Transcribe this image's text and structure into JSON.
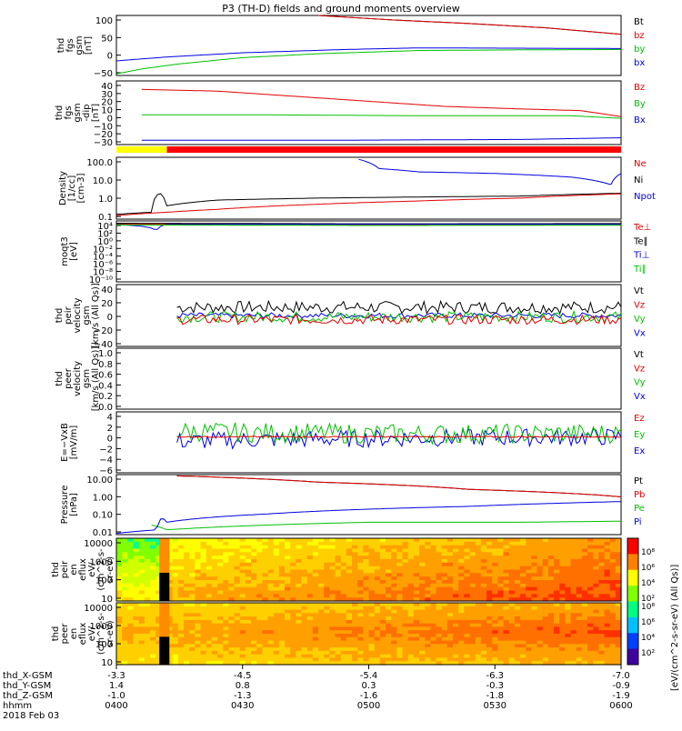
{
  "title": "P3 (TH-D) fields and ground moments overview",
  "colors": {
    "black": "#000000",
    "red": "#e00000",
    "green": "#00c000",
    "blue": "#0000e0",
    "yellow": "#ffff00",
    "bar_red": "#ff0000"
  },
  "chart_data": [
    {
      "type": "line",
      "ylabel": [
        "thd",
        "fgs",
        "gsm",
        "[nT]"
      ],
      "yticks": [
        "100",
        "50",
        "0",
        "−50"
      ],
      "ylim": [
        -75,
        110
      ],
      "legend": [
        {
          "label": "Bt",
          "color": "#000000"
        },
        {
          "label": "bz",
          "color": "#e00000"
        },
        {
          "label": "by",
          "color": "#00c000"
        },
        {
          "label": "bx",
          "color": "#0000e0"
        }
      ],
      "series": [
        {
          "name": "Bt",
          "color": "#000000",
          "x": [
            0.4,
            0.55,
            0.7,
            0.85,
            1.0
          ],
          "y": [
            110,
            96,
            85,
            72,
            52
          ]
        },
        {
          "name": "bz",
          "color": "#e00000",
          "x": [
            0.4,
            0.55,
            0.7,
            0.85,
            1.0
          ],
          "y": [
            110,
            96,
            85,
            72,
            52
          ]
        },
        {
          "name": "by",
          "color": "#00c000",
          "x": [
            0,
            0.05,
            0.12,
            0.25,
            0.4,
            0.6,
            0.8,
            1.0
          ],
          "y": [
            -70,
            -55,
            -40,
            -20,
            -8,
            2,
            4,
            5
          ]
        },
        {
          "name": "bx",
          "color": "#0000e0",
          "x": [
            0,
            0.1,
            0.25,
            0.45,
            0.6,
            0.8,
            1.0
          ],
          "y": [
            -30,
            -18,
            -5,
            5,
            10,
            9,
            8
          ]
        }
      ]
    },
    {
      "type": "line",
      "ylabel": [
        "thd",
        "fgs",
        "gsm",
        "-dip",
        "[nT]"
      ],
      "yticks": [
        "40",
        "30",
        "20",
        "10",
        "0",
        "−10",
        "−20",
        "−30"
      ],
      "ylim": [
        -35,
        40
      ],
      "legend": [
        {
          "label": "Bz",
          "color": "#e00000"
        },
        {
          "label": "By",
          "color": "#00c000"
        },
        {
          "label": "Bx",
          "color": "#0000e0"
        }
      ],
      "series": [
        {
          "name": "Bz",
          "color": "#e00000",
          "x": [
            0.05,
            0.2,
            0.35,
            0.5,
            0.65,
            0.8,
            0.92,
            1.0
          ],
          "y": [
            30,
            28,
            22,
            16,
            10,
            7,
            5,
            -2
          ]
        },
        {
          "name": "By",
          "color": "#00c000",
          "x": [
            0.05,
            0.3,
            0.6,
            0.9,
            1.0
          ],
          "y": [
            0,
            0,
            -1,
            -1,
            -4
          ]
        },
        {
          "name": "Bx",
          "color": "#0000e0",
          "x": [
            0.05,
            0.4,
            0.8,
            1.0
          ],
          "y": [
            -30,
            -30,
            -29,
            -27
          ]
        }
      ]
    },
    {
      "type": "bar",
      "label": "region bar",
      "segments": [
        {
          "x0": 0,
          "x1": 0.1,
          "color": "#ffff00"
        },
        {
          "x0": 0.1,
          "x1": 1.0,
          "color": "#ff0000"
        }
      ]
    },
    {
      "type": "line",
      "scale": "log",
      "ylabel": [
        "Density",
        "[1/cc]",
        "[cm-3]"
      ],
      "yticks": [
        "100.0",
        "10.0",
        "1.0",
        "0.1"
      ],
      "ylim": [
        0.03,
        200
      ],
      "legend": [
        {
          "label": "Ne",
          "color": "#e00000"
        },
        {
          "label": "Ni",
          "color": "#000000"
        },
        {
          "label": "Npot",
          "color": "#0000e0"
        }
      ],
      "series": [
        {
          "name": "Ni",
          "color": "#000000",
          "x": [
            0,
            0.07,
            0.085,
            0.1,
            0.2,
            0.4,
            0.6,
            0.8,
            1.0
          ],
          "y": [
            0.06,
            0.08,
            1.3,
            0.2,
            0.45,
            0.6,
            0.7,
            0.8,
            1.2
          ]
        },
        {
          "name": "Ne",
          "color": "#e00000",
          "x": [
            0,
            0.1,
            0.2,
            0.4,
            0.6,
            0.8,
            1.0
          ],
          "y": [
            0.05,
            0.08,
            0.12,
            0.25,
            0.4,
            0.6,
            1.1
          ]
        },
        {
          "name": "Npot",
          "color": "#0000e0",
          "x": [
            0.48,
            0.52,
            0.6,
            0.75,
            0.9,
            0.98,
            1.0
          ],
          "y": [
            150,
            40,
            25,
            20,
            12,
            4,
            20
          ]
        }
      ]
    },
    {
      "type": "line",
      "scale": "log",
      "ylabel": [
        "moqt3",
        "[eV]"
      ],
      "yticks": [
        "10⁴",
        "10²",
        "10⁰",
        "10⁻²",
        "10⁻⁴",
        "10⁻⁶",
        "10⁻⁸",
        "10⁻¹⁰"
      ],
      "ylim": [
        1e-10,
        10000.0
      ],
      "legend": [
        {
          "label": "Te⊥",
          "color": "#e00000"
        },
        {
          "label": "Te∥",
          "color": "#000000"
        },
        {
          "label": "Ti⊥",
          "color": "#0000e0"
        },
        {
          "label": "Ti∥",
          "color": "#00c000"
        }
      ],
      "series": [
        {
          "name": "Te⊥",
          "color": "#e00000",
          "x": [
            0,
            0.5,
            1.0
          ],
          "y": [
            2000,
            1500,
            1800
          ]
        },
        {
          "name": "Te∥",
          "color": "#000000",
          "x": [
            0,
            0.5,
            1.0
          ],
          "y": [
            3000,
            2200,
            2500
          ]
        },
        {
          "name": "Ti⊥",
          "color": "#0000e0",
          "x": [
            0,
            0.08,
            0.1,
            0.5,
            1.0
          ],
          "y": [
            1500,
            20,
            1500,
            1800,
            1700
          ]
        },
        {
          "name": "Ti∥",
          "color": "#00c000",
          "x": [
            0,
            0.5,
            1.0
          ],
          "y": [
            1200,
            900,
            1000
          ]
        }
      ]
    },
    {
      "type": "line",
      "ylabel": [
        "thd",
        "peir",
        "velocity",
        "gsm",
        "[km/s (All Qs)]"
      ],
      "yticks": [
        "40",
        "20",
        "0",
        "−20",
        "−40"
      ],
      "ylim": [
        -45,
        45
      ],
      "legend": [
        {
          "label": "Vt",
          "color": "#000000"
        },
        {
          "label": "Vz",
          "color": "#e00000"
        },
        {
          "label": "Vy",
          "color": "#00c000"
        },
        {
          "label": "Vx",
          "color": "#0000e0"
        }
      ],
      "series": [
        {
          "name": "Vt",
          "color": "#000000",
          "x": [
            0.12,
            1.0
          ],
          "y": [
            12,
            12
          ],
          "noise": 9
        },
        {
          "name": "Vx",
          "color": "#0000e0",
          "x": [
            0.12,
            1.0
          ],
          "y": [
            0,
            0
          ],
          "noise": 4
        },
        {
          "name": "Vy",
          "color": "#00c000",
          "x": [
            0.12,
            1.0
          ],
          "y": [
            -2,
            -2
          ],
          "noise": 8
        },
        {
          "name": "Vz",
          "color": "#e00000",
          "x": [
            0.12,
            1.0
          ],
          "y": [
            -6,
            -6
          ],
          "noise": 7
        }
      ]
    },
    {
      "type": "line",
      "ylabel": [
        "thd",
        "peer",
        "velocity",
        "gsm",
        "[km/s (All Qs)]"
      ],
      "yticks": [
        "1.0",
        "0.8",
        "0.6",
        "0.4",
        "0.2",
        "0.0"
      ],
      "ylim": [
        0,
        1
      ],
      "legend": [
        {
          "label": "Vt",
          "color": "#000000"
        },
        {
          "label": "Vz",
          "color": "#e00000"
        },
        {
          "label": "Vy",
          "color": "#00c000"
        },
        {
          "label": "Vx",
          "color": "#0000e0"
        }
      ],
      "series": []
    },
    {
      "type": "line",
      "ylabel": [
        "E=−VxB",
        "[mV/m]"
      ],
      "yticks": [
        "4",
        "2",
        "0",
        "−2",
        "−4",
        "−6"
      ],
      "ylim": [
        -6.5,
        4.5
      ],
      "legend": [
        {
          "label": "Ez",
          "color": "#e00000"
        },
        {
          "label": "Ey",
          "color": "#00c000"
        },
        {
          "label": "Ex",
          "color": "#0000e0"
        }
      ],
      "series": [
        {
          "name": "Ex",
          "color": "#0000e0",
          "x": [
            0.12,
            0.3,
            0.6,
            1.0
          ],
          "y": [
            -0.8,
            -0.5,
            -0.2,
            0
          ],
          "noise": 1.6
        },
        {
          "name": "Ey",
          "color": "#00c000",
          "x": [
            0.12,
            0.3,
            0.6,
            1.0
          ],
          "y": [
            1,
            0.7,
            0.5,
            0.6
          ],
          "noise": 1.8
        },
        {
          "name": "Ez",
          "color": "#e00000",
          "x": [
            0.12,
            1.0
          ],
          "y": [
            0,
            0
          ],
          "noise": 0.1
        }
      ]
    },
    {
      "type": "line",
      "scale": "log",
      "ylabel": [
        "Pressure",
        "[nPa]"
      ],
      "yticks": [
        "10.00",
        "1.00",
        "0.10",
        "0.01"
      ],
      "ylim": [
        0.005,
        30
      ],
      "legend": [
        {
          "label": "Pt",
          "color": "#000000"
        },
        {
          "label": "Pb",
          "color": "#e00000"
        },
        {
          "label": "Pe",
          "color": "#00c000"
        },
        {
          "label": "Pi",
          "color": "#0000e0"
        }
      ],
      "series": [
        {
          "name": "Pt",
          "color": "#000000",
          "x": [
            0.12,
            0.4,
            0.7,
            1.0
          ],
          "y": [
            25,
            10,
            3.5,
            1.2
          ]
        },
        {
          "name": "Pb",
          "color": "#e00000",
          "x": [
            0.12,
            0.4,
            0.7,
            1.0
          ],
          "y": [
            25,
            10,
            3.5,
            1.2
          ]
        },
        {
          "name": "Pe",
          "color": "#00c000",
          "x": [
            0.07,
            0.1,
            0.3,
            0.5,
            0.8,
            1.0
          ],
          "y": [
            0.02,
            0.01,
            0.02,
            0.03,
            0.03,
            0.035
          ]
        },
        {
          "name": "Pi",
          "color": "#0000e0",
          "x": [
            0,
            0.08,
            0.09,
            0.1,
            0.3,
            0.5,
            0.7,
            0.9,
            1.0
          ],
          "y": [
            0.006,
            0.01,
            0.06,
            0.03,
            0.1,
            0.2,
            0.3,
            0.5,
            0.6
          ]
        }
      ]
    },
    {
      "type": "heatmap",
      "ylabel": [
        "thd",
        "peir",
        "en",
        "eflux",
        "eV/",
        "(cm^2-s-",
        "sr-eV)"
      ],
      "yticks": [
        "10000",
        "1000",
        "100",
        "10"
      ]
    },
    {
      "type": "heatmap",
      "ylabel": [
        "thd",
        "peer",
        "en",
        "eflux",
        "eV/",
        "(cm^2-s-",
        "sr-eV)"
      ],
      "yticks": [
        "10000",
        "1000",
        "100",
        "10"
      ]
    }
  ],
  "colorbar": {
    "top_ticks": [
      "10⁸",
      "10⁶",
      "10⁴",
      "10²"
    ],
    "bottom_ticks": [
      "10⁸",
      "10⁶",
      "10⁴",
      "10²"
    ],
    "label": "[eV/(cm^2-s-sr-eV) (All Qs)]"
  },
  "xaxis": {
    "rows": [
      {
        "label": "thd_X-GSM",
        "values": [
          "-3.3",
          "-4.5",
          "-5.4",
          "-6.3",
          "-7.0"
        ]
      },
      {
        "label": "thd_Y-GSM",
        "values": [
          "1.4",
          "0.8",
          "0.3",
          "-0.3",
          "-0.9"
        ]
      },
      {
        "label": "thd_Z-GSM",
        "values": [
          "-1.0",
          "-1.3",
          "-1.6",
          "-1.8",
          "-1.9"
        ]
      },
      {
        "label": "hhmm",
        "values": [
          "0400",
          "0430",
          "0500",
          "0530",
          "0600"
        ]
      }
    ],
    "date": "2018 Feb 03"
  }
}
